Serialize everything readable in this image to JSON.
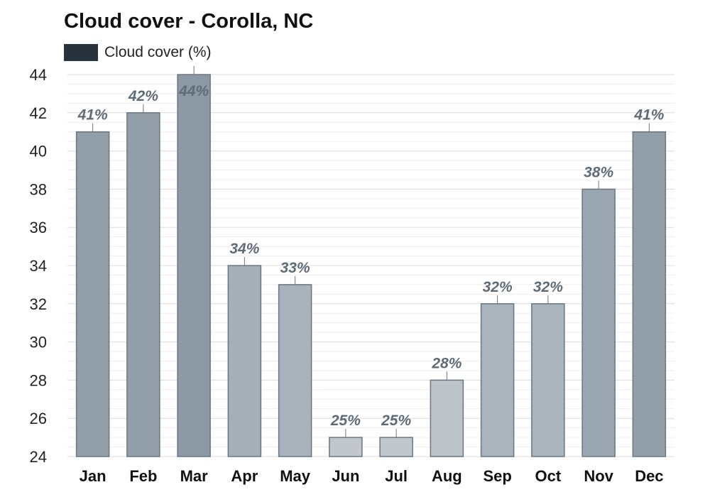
{
  "chart_data": {
    "type": "bar",
    "title": "Cloud cover - Corolla, NC",
    "legend": {
      "label": "Cloud cover (%)",
      "color": "#27323c",
      "placement": "top-left"
    },
    "categories": [
      "Jan",
      "Feb",
      "Mar",
      "Apr",
      "May",
      "Jun",
      "Jul",
      "Aug",
      "Sep",
      "Oct",
      "Nov",
      "Dec"
    ],
    "values": [
      41,
      42,
      44,
      34,
      33,
      25,
      25,
      28,
      32,
      32,
      38,
      41
    ],
    "value_labels": [
      "41%",
      "42%",
      "44%",
      "34%",
      "33%",
      "25%",
      "25%",
      "28%",
      "32%",
      "32%",
      "38%",
      "41%"
    ],
    "bar_colors": [
      "#929fa9",
      "#929fa9",
      "#8c99a4",
      "#a4afb8",
      "#a9b3bb",
      "#c0c7cd",
      "#c0c7cd",
      "#bcc4ca",
      "#aab4bc",
      "#aab4bc",
      "#9aa6b0",
      "#929fa9"
    ],
    "ylim": [
      24,
      44
    ],
    "yticks": [
      24,
      26,
      28,
      30,
      32,
      34,
      36,
      38,
      40,
      42,
      44
    ],
    "xlabel": "",
    "ylabel": "",
    "grid": true
  }
}
